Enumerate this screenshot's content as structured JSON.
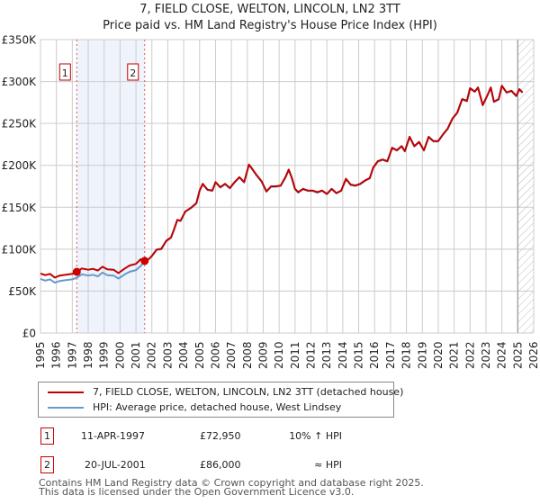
{
  "header": {
    "title": "7, FIELD CLOSE, WELTON, LINCOLN, LN2 3TT",
    "subtitle": "Price paid vs. HM Land Registry's House Price Index (HPI)"
  },
  "colors": {
    "property_line": "#c00000",
    "hpi_line": "#6699cc",
    "shade": "#eef3fc",
    "marker_box": "#c00000",
    "grid": "#cccccc"
  },
  "chart_data": {
    "type": "line",
    "title": "Price paid vs. HM Land Registry's House Price Index (HPI)",
    "xlabel": "",
    "ylabel": "",
    "xlim": [
      1995,
      2026
    ],
    "ylim": [
      0,
      350000
    ],
    "grid": true,
    "x_ticks": [
      "1995",
      "1996",
      "1997",
      "1998",
      "1999",
      "2000",
      "2001",
      "2002",
      "2003",
      "2004",
      "2005",
      "2006",
      "2007",
      "2008",
      "2009",
      "2010",
      "2011",
      "2012",
      "2013",
      "2014",
      "2015",
      "2016",
      "2017",
      "2018",
      "2019",
      "2020",
      "2021",
      "2022",
      "2023",
      "2024",
      "2025",
      "2026"
    ],
    "y_ticks": [
      "£0",
      "£50K",
      "£100K",
      "£150K",
      "£200K",
      "£250K",
      "£300K",
      "£350K"
    ],
    "y_tick_values": [
      0,
      50000,
      100000,
      150000,
      200000,
      250000,
      300000,
      350000
    ],
    "shaded_region": [
      1997.28,
      2001.55
    ],
    "forecast_hatch_from": 2025.0,
    "series": [
      {
        "name": "7, FIELD CLOSE, WELTON, LINCOLN, LN2 3TT (detached house)",
        "x": [
          1995.0,
          1995.3,
          1995.6,
          1995.9,
          1996.2,
          1996.6,
          1997.0,
          1997.28,
          1997.6,
          1998.0,
          1998.3,
          1998.6,
          1998.9,
          1999.2,
          1999.6,
          1999.9,
          2000.3,
          2000.6,
          2001.0,
          2001.3,
          2001.55,
          2001.8,
          2002.0,
          2002.3,
          2002.6,
          2002.9,
          2003.2,
          2003.4,
          2003.6,
          2003.8,
          2004.1,
          2004.5,
          2004.8,
          2005.0,
          2005.2,
          2005.5,
          2005.8,
          2006.0,
          2006.3,
          2006.6,
          2006.9,
          2007.2,
          2007.5,
          2007.8,
          2008.1,
          2008.3,
          2008.6,
          2008.9,
          2009.2,
          2009.5,
          2009.8,
          2010.1,
          2010.4,
          2010.6,
          2010.8,
          2011.0,
          2011.2,
          2011.5,
          2011.8,
          2012.1,
          2012.4,
          2012.7,
          2013.0,
          2013.3,
          2013.6,
          2013.9,
          2014.2,
          2014.5,
          2014.8,
          2015.1,
          2015.4,
          2015.7,
          2015.9,
          2016.2,
          2016.5,
          2016.8,
          2017.1,
          2017.4,
          2017.7,
          2017.9,
          2018.2,
          2018.5,
          2018.8,
          2019.1,
          2019.4,
          2019.7,
          2020.0,
          2020.3,
          2020.6,
          2020.9,
          2021.2,
          2021.5,
          2021.8,
          2022.0,
          2022.3,
          2022.5,
          2022.8,
          2023.1,
          2023.3,
          2023.5,
          2023.8,
          2024.0,
          2024.3,
          2024.6,
          2024.9,
          2025.1,
          2025.3
        ],
        "values": [
          71000,
          69000,
          70500,
          66000,
          68500,
          69500,
          70500,
          72950,
          77000,
          75500,
          76500,
          74500,
          79000,
          76000,
          75500,
          71500,
          77000,
          80500,
          82500,
          88000,
          86000,
          88000,
          92000,
          99500,
          100500,
          110000,
          114000,
          124000,
          135000,
          134000,
          145000,
          150000,
          155000,
          170000,
          178000,
          171000,
          170000,
          180000,
          174000,
          178000,
          173000,
          180000,
          186000,
          180000,
          201000,
          196000,
          188000,
          181000,
          169000,
          175000,
          175000,
          176000,
          186000,
          195000,
          185000,
          172000,
          168000,
          172000,
          170000,
          170000,
          168000,
          170000,
          166000,
          172000,
          167000,
          170000,
          184000,
          177000,
          176000,
          178000,
          182000,
          185000,
          197000,
          205000,
          207000,
          205000,
          221000,
          218000,
          223000,
          217000,
          234000,
          223000,
          228000,
          218000,
          234000,
          229000,
          229000,
          237000,
          244000,
          256000,
          263000,
          279000,
          277000,
          292000,
          288000,
          293000,
          272000,
          284000,
          293000,
          276000,
          279000,
          295000,
          287000,
          289000,
          283000,
          291000,
          287000
        ]
      },
      {
        "name": "HPI: Average price, detached house, West Lindsey",
        "x": [
          1995.0,
          1995.3,
          1995.6,
          1995.9,
          1996.2,
          1996.6,
          1997.0,
          1997.28,
          1997.6,
          1998.0,
          1998.3,
          1998.6,
          1998.9,
          1999.2,
          1999.6,
          1999.9,
          2000.3,
          2000.6,
          2001.0,
          2001.3,
          2001.55,
          2001.8,
          2002.0,
          2002.3,
          2002.6,
          2002.9,
          2003.2,
          2003.4,
          2003.6,
          2003.8,
          2004.1,
          2004.5,
          2004.8,
          2005.0,
          2005.2,
          2005.5,
          2005.8,
          2006.0,
          2006.3,
          2006.6,
          2006.9,
          2007.2,
          2007.5,
          2007.8,
          2008.1,
          2008.3,
          2008.6,
          2008.9,
          2009.2,
          2009.5,
          2009.8,
          2010.1,
          2010.4,
          2010.6,
          2010.8,
          2011.0,
          2011.2,
          2011.5,
          2011.8,
          2012.1,
          2012.4,
          2012.7,
          2013.0,
          2013.3,
          2013.6,
          2013.9,
          2014.2,
          2014.5,
          2014.8,
          2015.1,
          2015.4,
          2015.7,
          2015.9,
          2016.2,
          2016.5,
          2016.8,
          2017.1,
          2017.4,
          2017.7,
          2017.9,
          2018.2,
          2018.5,
          2018.8,
          2019.1,
          2019.4,
          2019.7,
          2020.0,
          2020.3,
          2020.6,
          2020.9,
          2021.2,
          2021.5,
          2021.8,
          2022.0,
          2022.3,
          2022.5,
          2022.8,
          2023.1,
          2023.3,
          2023.5,
          2023.8,
          2024.0,
          2024.3,
          2024.6,
          2024.9,
          2025.1,
          2025.3
        ],
        "values": [
          64500,
          62500,
          64000,
          60000,
          62000,
          63000,
          64000,
          66000,
          70000,
          68500,
          69500,
          67500,
          72000,
          69000,
          68500,
          65000,
          70000,
          73000,
          75000,
          80000,
          86000,
          88000,
          91500,
          99000,
          100000,
          109500,
          113500,
          123500,
          134500,
          133500,
          144500,
          149500,
          154500,
          169500,
          177500,
          170500,
          169500,
          179500,
          173500,
          177500,
          172500,
          179500,
          185500,
          179500,
          200500,
          195500,
          187500,
          180500,
          168500,
          174500,
          174500,
          175500,
          185500,
          194500,
          184500,
          171500,
          167500,
          171500,
          169500,
          169500,
          167500,
          169500,
          165500,
          171500,
          166500,
          169500,
          183500,
          176500,
          175500,
          177500,
          181500,
          184500,
          196500,
          204500,
          206500,
          204500,
          220500,
          217500,
          222500,
          216500,
          233500,
          222500,
          227500,
          217500,
          233500,
          228500,
          228500,
          236500,
          243500,
          255500,
          262500,
          278500,
          276500,
          291500,
          287500,
          292500,
          271500,
          283500,
          292500,
          275500,
          278500,
          294500,
          286500,
          288500,
          282500,
          290500,
          286500
        ]
      }
    ],
    "annotations": [
      {
        "label": "1",
        "x": 1997.28,
        "value": 72950
      },
      {
        "label": "2",
        "x": 2001.55,
        "value": 86000
      }
    ]
  },
  "legend": {
    "items": [
      {
        "label": "7, FIELD CLOSE, WELTON, LINCOLN, LN2 3TT (detached house)"
      },
      {
        "label": "HPI: Average price, detached house, West Lindsey"
      }
    ]
  },
  "transactions": [
    {
      "num": "1",
      "date": "11-APR-1997",
      "price": "£72,950",
      "hpi": "10% ↑ HPI"
    },
    {
      "num": "2",
      "date": "20-JUL-2001",
      "price": "£86,000",
      "hpi": "≈ HPI"
    }
  ],
  "footer": {
    "line1": "Contains HM Land Registry data © Crown copyright and database right 2025.",
    "line2": "This data is licensed under the Open Government Licence v3.0."
  }
}
